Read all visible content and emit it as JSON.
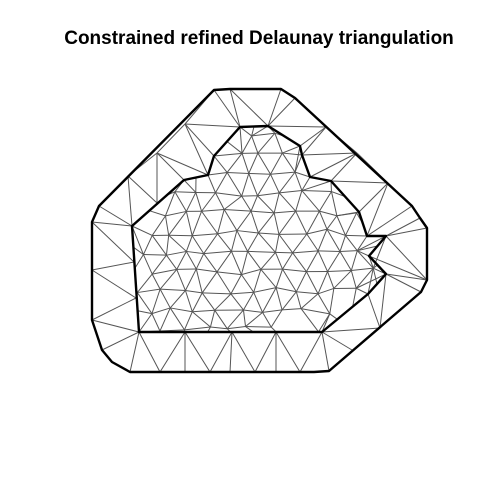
{
  "title": "Constrained refined Delaunay triangulation",
  "colors": {
    "mesh_edges": "#555555",
    "boundaries": "#000000",
    "background": "#ffffff"
  }
}
